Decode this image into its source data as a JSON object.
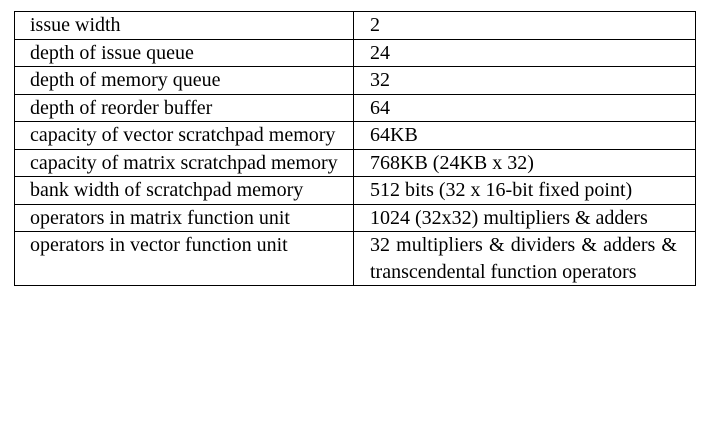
{
  "table": {
    "rows": [
      {
        "parameter": "issue width",
        "value": "2"
      },
      {
        "parameter": "depth of issue queue",
        "value": "24"
      },
      {
        "parameter": "depth of memory queue",
        "value": "32"
      },
      {
        "parameter": "depth of reorder buffer",
        "value": "64"
      },
      {
        "parameter": "capacity of vector scratchpad memory",
        "value": "64KB"
      },
      {
        "parameter": "capacity of matrix scratchpad memory",
        "value": "768KB (24KB x 32)"
      },
      {
        "parameter": "bank width of scratchpad memory",
        "value": "512 bits (32 x 16-bit fixed point)"
      },
      {
        "parameter": "operators in matrix function unit",
        "value": "1024 (32x32) multipliers & adders"
      },
      {
        "parameter": "operators in vector function unit",
        "value": "32 multipliers & dividers & adders & transcendental function operators"
      }
    ]
  }
}
